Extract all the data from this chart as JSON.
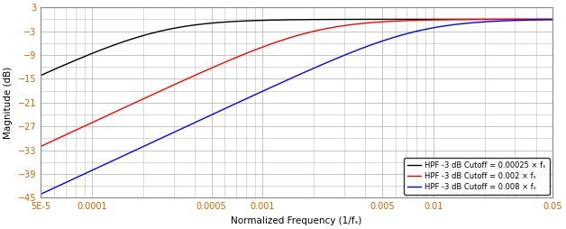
{
  "xlabel": "Normalized Frequency (1/fₛ)",
  "ylabel": "Magnitude (dB)",
  "xmin": 5e-05,
  "xmax": 0.05,
  "ymin": -45,
  "ymax": 3,
  "yticks": [
    3,
    -3,
    -9,
    -15,
    -21,
    -27,
    -33,
    -39,
    -45
  ],
  "xtick_labels": [
    "5E-5",
    "0.0001",
    "0.0005",
    "0.001",
    "0.005",
    "0.01",
    "0.05"
  ],
  "xtick_values": [
    5e-05,
    0.0001,
    0.0005,
    0.001,
    0.005,
    0.01,
    0.05
  ],
  "cutoffs": [
    0.00025,
    0.002,
    0.008
  ],
  "colors": [
    "black",
    "red",
    "blue"
  ],
  "legend_labels": [
    "HPF -3 dB Cutoff = 0.00025 × fₛ",
    "HPF -3 dB Cutoff = 0.002 × fₛ",
    "HPF -3 dB Cutoff = 0.008 × fₛ"
  ],
  "background_color": "#ffffff",
  "grid_color": "#bbbbbb",
  "tick_label_color": "#cc6600",
  "axis_label_color": "#000000",
  "linewidth": 1.0,
  "legend_fontsize": 6.0,
  "axis_label_fontsize": 7.5,
  "tick_fontsize": 7.0
}
